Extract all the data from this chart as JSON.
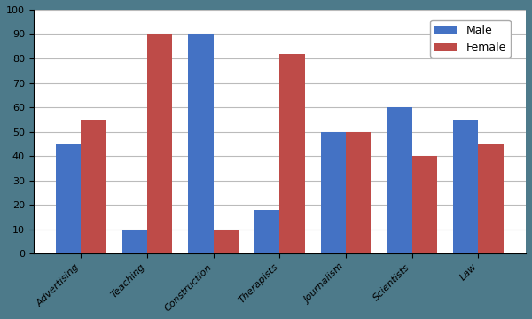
{
  "categories": [
    "Advertising",
    "Teaching",
    "Construction",
    "Therapists",
    "Journalism",
    "Scientists",
    "Law"
  ],
  "male_values": [
    45,
    10,
    90,
    18,
    50,
    60,
    55
  ],
  "female_values": [
    55,
    90,
    10,
    82,
    50,
    40,
    45
  ],
  "male_color": "#4472C4",
  "female_color": "#BE4B48",
  "male_label": "Male",
  "female_label": "Female",
  "ylim": [
    0,
    100
  ],
  "yticks": [
    0,
    10,
    20,
    30,
    40,
    50,
    60,
    70,
    80,
    90,
    100
  ],
  "bar_width": 0.38,
  "figsize": [
    6.0,
    3.6
  ],
  "dpi": 100,
  "grid_color": "#bbbbbb",
  "figure_bg_color": "#4D7A8A",
  "plot_bg_color": "#FFFFFF",
  "legend_fontsize": 9,
  "tick_fontsize": 8,
  "label_fontsize": 8
}
